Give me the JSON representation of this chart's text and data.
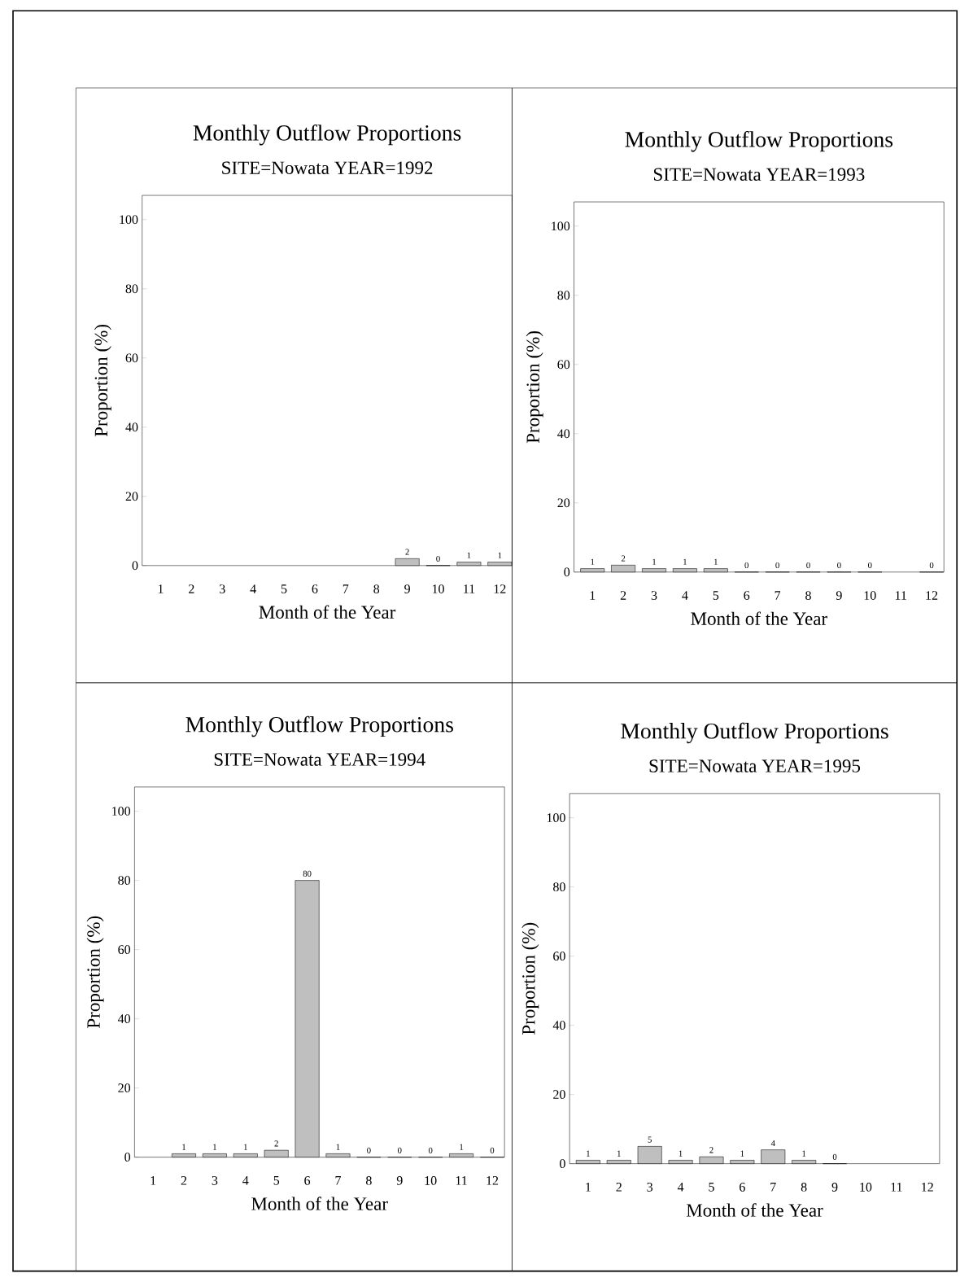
{
  "chart_data": [
    {
      "type": "bar",
      "title": "Monthly Outflow Proportions",
      "subtitle": "SITE=Nowata YEAR=1992",
      "xlabel": "Month of the Year",
      "ylabel": "Proportion (%)",
      "categories": [
        "1",
        "2",
        "3",
        "4",
        "5",
        "6",
        "7",
        "8",
        "9",
        "10",
        "11",
        "12"
      ],
      "values": [
        null,
        null,
        null,
        null,
        null,
        null,
        null,
        null,
        2,
        0,
        1,
        1
      ],
      "color": "#000000",
      "ylim": [
        0,
        107
      ],
      "yticks": [
        0,
        20,
        40,
        60,
        80,
        100
      ],
      "data_labels": true
    },
    {
      "type": "bar",
      "title": "Monthly Outflow Proportions",
      "subtitle": "SITE=Nowata YEAR=1993",
      "xlabel": "Month of the Year",
      "ylabel": "Proportion (%)",
      "categories": [
        "1",
        "2",
        "3",
        "4",
        "5",
        "6",
        "7",
        "8",
        "9",
        "10",
        "11",
        "12"
      ],
      "values": [
        1,
        2,
        1,
        1,
        1,
        0,
        0,
        0,
        0,
        0,
        null,
        0
      ],
      "color": "#000000",
      "ylim": [
        0,
        107
      ],
      "yticks": [
        0,
        20,
        40,
        60,
        80,
        100
      ],
      "data_labels": true
    },
    {
      "type": "bar",
      "title": "Monthly Outflow Proportions",
      "subtitle": "SITE=Nowata YEAR=1994",
      "xlabel": "Month of the Year",
      "ylabel": "Proportion (%)",
      "categories": [
        "1",
        "2",
        "3",
        "4",
        "5",
        "6",
        "7",
        "8",
        "9",
        "10",
        "11",
        "12"
      ],
      "values": [
        null,
        1,
        1,
        1,
        2,
        80,
        1,
        0,
        0,
        0,
        1,
        0
      ],
      "color": "#000000",
      "ylim": [
        0,
        107
      ],
      "yticks": [
        0,
        20,
        40,
        60,
        80,
        100
      ],
      "data_labels": true
    },
    {
      "type": "bar",
      "title": "Monthly Outflow Proportions",
      "subtitle": "SITE=Nowata YEAR=1995",
      "xlabel": "Month of the Year",
      "ylabel": "Proportion (%)",
      "categories": [
        "1",
        "2",
        "3",
        "4",
        "5",
        "6",
        "7",
        "8",
        "9",
        "10",
        "11",
        "12"
      ],
      "values": [
        1,
        1,
        5,
        1,
        2,
        1,
        4,
        1,
        0,
        null,
        null,
        null
      ],
      "color": "#000000",
      "ylim": [
        0,
        107
      ],
      "yticks": [
        0,
        20,
        40,
        60,
        80,
        100
      ],
      "data_labels": true
    }
  ]
}
